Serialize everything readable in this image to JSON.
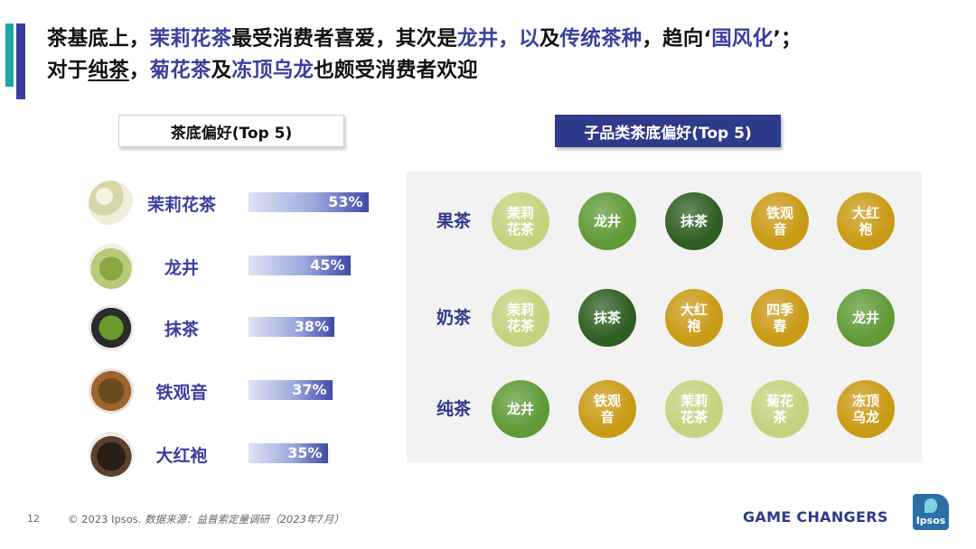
{
  "headline": {
    "l1_a": "茶基底上，",
    "l1_b": "茉莉花茶",
    "l1_c": "最受消费者喜爱，其次是",
    "l1_d": "龙井，以",
    "l1_e": "及",
    "l1_f": "传统茶种",
    "l1_g": "，趋向‘",
    "l1_h": "国风化",
    "l1_i": "’；",
    "l2_a": "对于",
    "l2_b": "纯茶",
    "l2_c": "，",
    "l2_d": "菊花茶",
    "l2_e": "及",
    "l2_f": "冻顶乌龙",
    "l2_g": "也颇受消费者欢迎"
  },
  "colors": {
    "accent_blue": "#3a3f9c",
    "accent_teal": "#1fa6a6",
    "light_green": "#c6d27e",
    "mid_green": "#5f9a36",
    "dark_green": "#2e5e21",
    "gold": "#c99a14"
  },
  "chart_data": [
    {
      "type": "bar",
      "title": "茶底偏好(Top 5)",
      "categories": [
        "茉莉花茶",
        "龙井",
        "抹茶",
        "铁观音",
        "大红袍"
      ],
      "values": [
        53,
        45,
        38,
        37,
        35
      ],
      "value_labels": [
        "53%",
        "45%",
        "38%",
        "37%",
        "35%"
      ],
      "icons": [
        "jasmine-tea-icon",
        "longjing-tea-icon",
        "matcha-icon",
        "tieguanyin-icon",
        "dahongpao-icon"
      ],
      "orientation": "horizontal"
    },
    {
      "type": "table",
      "title": "子品类茶底偏好(Top 5)",
      "rows": [
        {
          "category": "果茶",
          "items": [
            {
              "label": "茉莉花茶",
              "line1": "茉莉",
              "line2": "花茶",
              "color": "light_green"
            },
            {
              "label": "龙井",
              "line1": "龙井",
              "line2": "",
              "color": "mid_green"
            },
            {
              "label": "抹茶",
              "line1": "抹茶",
              "line2": "",
              "color": "dark_green"
            },
            {
              "label": "铁观音",
              "line1": "铁观",
              "line2": "音",
              "color": "gold"
            },
            {
              "label": "大红袍",
              "line1": "大红",
              "line2": "袍",
              "color": "gold"
            }
          ]
        },
        {
          "category": "奶茶",
          "items": [
            {
              "label": "茉莉花茶",
              "line1": "茉莉",
              "line2": "花茶",
              "color": "light_green"
            },
            {
              "label": "抹茶",
              "line1": "抹茶",
              "line2": "",
              "color": "dark_green"
            },
            {
              "label": "大红袍",
              "line1": "大红",
              "line2": "袍",
              "color": "gold"
            },
            {
              "label": "四季春",
              "line1": "四季",
              "line2": "春",
              "color": "gold"
            },
            {
              "label": "龙井",
              "line1": "龙井",
              "line2": "",
              "color": "mid_green"
            }
          ]
        },
        {
          "category": "纯茶",
          "items": [
            {
              "label": "龙井",
              "line1": "龙井",
              "line2": "",
              "color": "mid_green"
            },
            {
              "label": "铁观音",
              "line1": "铁观",
              "line2": "音",
              "color": "gold"
            },
            {
              "label": "茉莉花茶",
              "line1": "茉莉",
              "line2": "花茶",
              "color": "light_green"
            },
            {
              "label": "菊花茶",
              "line1": "菊花",
              "line2": "茶",
              "color": "light_green"
            },
            {
              "label": "冻顶乌龙",
              "line1": "冻顶",
              "line2": "乌龙",
              "color": "gold"
            }
          ]
        }
      ]
    }
  ],
  "footer": {
    "page_number": "12",
    "copyright": "© 2023 Ipsos.",
    "source": "数据来源：益普索定量调研（2023年7月）",
    "brand": "GAME CHANGERS",
    "logo_text": "Ipsos"
  }
}
